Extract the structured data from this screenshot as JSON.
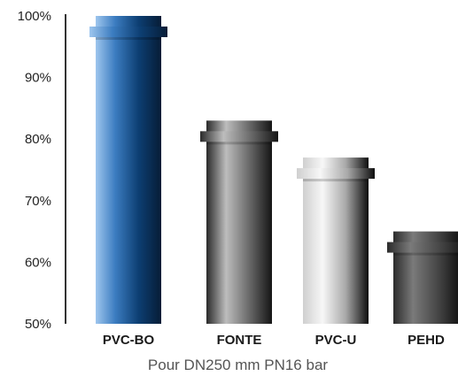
{
  "chart_data": {
    "type": "bar",
    "categories": [
      "PVC-BO",
      "FONTE",
      "PVC-U",
      "PEHD"
    ],
    "values": [
      100,
      83,
      77,
      65
    ],
    "ylim": [
      50,
      100
    ],
    "yticks": [
      "50%",
      "60%",
      "70%",
      "80%",
      "90%",
      "100%"
    ],
    "caption": "Pour DN250 mm PN16 bar",
    "grid": false,
    "colors": {
      "PVC-BO": [
        "#9ec6ee",
        "#3b7cc0",
        "#0d3f73",
        "#061c36"
      ],
      "FONTE": [
        "#2a2a2a",
        "#bdbdbd",
        "#6a6a6a",
        "#151515"
      ],
      "PVC-U": [
        "#cfcfcf",
        "#f7f7f7",
        "#a9a9a9",
        "#0e0e0e"
      ],
      "PEHD": [
        "#2b2b2b",
        "#7a7a7a",
        "#4a4a4a",
        "#151515"
      ]
    }
  }
}
